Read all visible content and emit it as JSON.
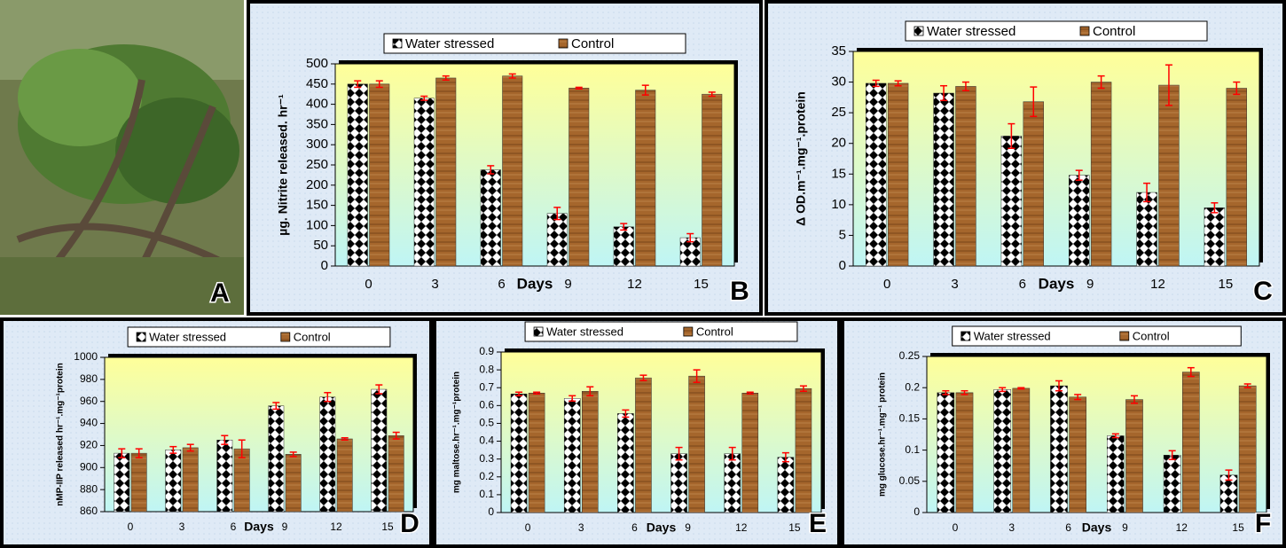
{
  "photo": {
    "panel_label": "A"
  },
  "chart_data": [
    {
      "type": "bar",
      "panel_label": "B",
      "x_label": "Days",
      "y_label": "µg. Nitrite released. hr⁻¹",
      "categories": [
        "0",
        "3",
        "6",
        "9",
        "12",
        "15"
      ],
      "series": [
        {
          "name": "Water stressed",
          "color": "#000000",
          "values": [
            450,
            415,
            238,
            130,
            97,
            70
          ],
          "errors": [
            8,
            5,
            10,
            15,
            8,
            10
          ]
        },
        {
          "name": "Control",
          "color": "#a5662c",
          "values": [
            450,
            465,
            470,
            440,
            435,
            425
          ],
          "errors": [
            8,
            5,
            5,
            2,
            12,
            5
          ]
        }
      ],
      "ylim": [
        0,
        500
      ],
      "yticks": [
        0,
        50,
        100,
        150,
        200,
        250,
        300,
        350,
        400,
        450,
        500
      ],
      "error_color": "#ff0000"
    },
    {
      "type": "bar",
      "panel_label": "C",
      "x_label": "Days",
      "y_label": "Δ OD.m⁻¹.mg⁻¹.protein",
      "categories": [
        "0",
        "3",
        "6",
        "9",
        "12",
        "15"
      ],
      "series": [
        {
          "name": "Water stressed",
          "color": "#000000",
          "values": [
            29.8,
            28.2,
            21.2,
            14.8,
            12,
            9.5
          ],
          "errors": [
            0.5,
            1.2,
            2,
            0.8,
            1.5,
            0.8
          ]
        },
        {
          "name": "Control",
          "color": "#a5662c",
          "values": [
            29.8,
            29.3,
            26.8,
            30,
            29.5,
            29
          ],
          "errors": [
            0.4,
            0.7,
            2.4,
            1,
            3.3,
            1
          ]
        }
      ],
      "ylim": [
        0,
        35
      ],
      "yticks": [
        0,
        5,
        10,
        15,
        20,
        25,
        30,
        35
      ],
      "error_color": "#ff0000"
    },
    {
      "type": "bar",
      "panel_label": "D",
      "x_label": "Days",
      "y_label": "nMP-IIP released hr⁻¹.mg⁻¹protein",
      "categories": [
        "0",
        "3",
        "6",
        "9",
        "12",
        "15"
      ],
      "series": [
        {
          "name": "Water stressed",
          "color": "#000000",
          "values": [
            913,
            916,
            925,
            956,
            964,
            971
          ],
          "errors": [
            4,
            3,
            4,
            3,
            4,
            4
          ]
        },
        {
          "name": "Control",
          "color": "#a5662c",
          "values": [
            913,
            918,
            917,
            912,
            926,
            929
          ],
          "errors": [
            4,
            3,
            8,
            2,
            1,
            3
          ]
        }
      ],
      "ylim": [
        860,
        1000
      ],
      "yticks": [
        860,
        880,
        900,
        920,
        940,
        960,
        980,
        1000
      ],
      "error_color": "#ff0000"
    },
    {
      "type": "bar",
      "panel_label": "E",
      "x_label": "Days",
      "y_label": "mg maltose.hr⁻¹.mg⁻¹protein",
      "categories": [
        "0",
        "3",
        "6",
        "9",
        "12",
        "15"
      ],
      "series": [
        {
          "name": "Water stressed",
          "color": "#000000",
          "values": [
            0.665,
            0.64,
            0.555,
            0.33,
            0.33,
            0.31
          ],
          "errors": [
            0.01,
            0.015,
            0.02,
            0.035,
            0.035,
            0.025
          ]
        },
        {
          "name": "Control",
          "color": "#a5662c",
          "values": [
            0.67,
            0.68,
            0.755,
            0.765,
            0.67,
            0.695
          ],
          "errors": [
            0.005,
            0.025,
            0.015,
            0.035,
            0.005,
            0.015
          ]
        }
      ],
      "ylim": [
        0,
        0.9
      ],
      "yticks": [
        0,
        0.1,
        0.2,
        0.3,
        0.4,
        0.5,
        0.6,
        0.7,
        0.8,
        0.9
      ],
      "error_color": "#ff0000"
    },
    {
      "type": "bar",
      "panel_label": "F",
      "x_label": "Days",
      "y_label": "mg glucose.hr⁻¹.mg⁻¹ protein",
      "categories": [
        "0",
        "3",
        "6",
        "9",
        "12",
        "15"
      ],
      "series": [
        {
          "name": "Water stressed",
          "color": "#000000",
          "values": [
            0.192,
            0.197,
            0.203,
            0.123,
            0.092,
            0.06
          ],
          "errors": [
            0.003,
            0.003,
            0.008,
            0.003,
            0.007,
            0.008
          ]
        },
        {
          "name": "Control",
          "color": "#a5662c",
          "values": [
            0.192,
            0.199,
            0.185,
            0.181,
            0.225,
            0.203
          ],
          "errors": [
            0.003,
            0.001,
            0.004,
            0.006,
            0.007,
            0.003
          ]
        }
      ],
      "ylim": [
        0,
        0.25
      ],
      "yticks": [
        0,
        0.05,
        0.1,
        0.15,
        0.2,
        0.25
      ],
      "error_color": "#ff0000"
    }
  ]
}
